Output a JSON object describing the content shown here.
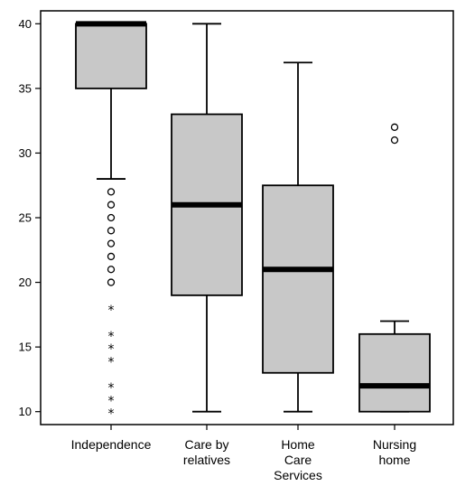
{
  "chart_data": {
    "type": "boxplot",
    "title": "",
    "xlabel": "",
    "ylabel": "",
    "ylim": [
      9,
      41
    ],
    "yticks": [
      10,
      15,
      20,
      25,
      30,
      35,
      40
    ],
    "grid": false,
    "legend": "none",
    "box_fill": "#c8c8c8",
    "categories": [
      [
        "Independence"
      ],
      [
        "Care by",
        "relatives"
      ],
      [
        "Home",
        "Care",
        "Services"
      ],
      [
        "Nursing",
        "home"
      ]
    ],
    "boxes": [
      {
        "whisker_low": 28,
        "q1": 35,
        "median": 40,
        "q3": 40,
        "whisker_high": 40,
        "outliers": [
          27,
          26,
          25,
          24,
          23,
          22,
          21,
          20
        ],
        "extremes": [
          18,
          16,
          15,
          14,
          12,
          11,
          10
        ]
      },
      {
        "whisker_low": 10,
        "q1": 19,
        "median": 26,
        "q3": 33,
        "whisker_high": 40,
        "outliers": [],
        "extremes": []
      },
      {
        "whisker_low": 10,
        "q1": 13,
        "median": 21,
        "q3": 27.5,
        "whisker_high": 37,
        "outliers": [],
        "extremes": []
      },
      {
        "whisker_low": 10,
        "q1": 10,
        "median": 12,
        "q3": 16,
        "whisker_high": 17,
        "outliers": [
          31,
          32
        ],
        "extremes": []
      }
    ]
  }
}
